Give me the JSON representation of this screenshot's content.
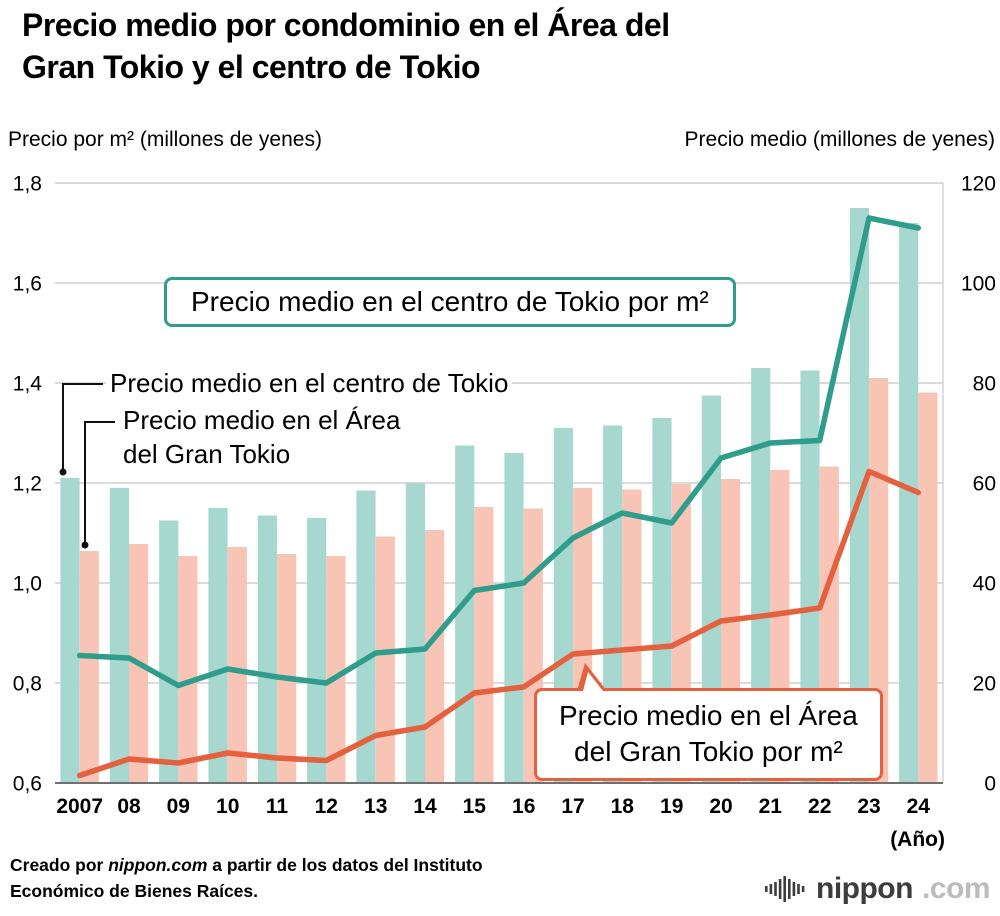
{
  "title": {
    "line1": "Precio medio por condominio en el Área del",
    "line2": "Gran Tokio y el centro de Tokio"
  },
  "axis_headers": {
    "left": "Precio por m² (millones de yenes)",
    "right": "Precio medio (millones de yenes)"
  },
  "callouts": {
    "centro_line_label": "Precio medio en el centro de Tokio por m²",
    "gran_tokio_line_label_lines": [
      "Precio medio en el Área",
      "del Gran Tokio por m²"
    ],
    "centro_bar_label": "Precio medio en el centro de Tokio",
    "gran_tokio_bar_label_lines": [
      "Precio medio en el Área",
      "del Gran Tokio"
    ]
  },
  "x_axis_note": "(Año)",
  "footer": {
    "prefix": "Creado por ",
    "source": "nippon.com",
    "suffix": " a partir de los datos del Instituto Económico de Bienes Raíces."
  },
  "logo": {
    "name": "nippon",
    "tld": ".com",
    "mark": "soundwave-bars-icon"
  },
  "colors": {
    "teal_bar": "#a6d8cf",
    "salmon_bar": "#f7c4b6",
    "teal_line": "#2f9c8c",
    "salmon_line": "#e3613f",
    "gridline": "#cfcfcf",
    "baseline": "#6f6f6f",
    "connector": "#111111"
  },
  "chart_data": {
    "type": "bar",
    "subtype": "grouped-bars-with-lines-combo",
    "categories": [
      "2007",
      "08",
      "09",
      "10",
      "11",
      "12",
      "13",
      "14",
      "15",
      "16",
      "17",
      "18",
      "19",
      "20",
      "21",
      "22",
      "23",
      "24"
    ],
    "bar_series": [
      {
        "name": "Precio medio en el centro de Tokio",
        "axis": "right",
        "color_key": "teal_bar",
        "values": [
          61,
          59,
          52.5,
          55,
          53.5,
          53,
          58.5,
          60,
          67.5,
          66,
          71,
          71.5,
          73,
          77.5,
          83,
          82.5,
          115,
          112
        ]
      },
      {
        "name": "Precio medio en el Área del Gran Tokio",
        "axis": "right",
        "color_key": "salmon_bar",
        "values": [
          46.4,
          47.8,
          45.4,
          47.2,
          45.8,
          45.4,
          49.3,
          50.6,
          55.2,
          54.9,
          59.0,
          58.7,
          59.8,
          60.8,
          62.6,
          63.3,
          81.0,
          78.1
        ]
      }
    ],
    "line_series": [
      {
        "name": "Precio medio en el centro de Tokio por m²",
        "axis": "left",
        "color_key": "teal_line",
        "values": [
          0.855,
          0.85,
          0.795,
          0.828,
          0.812,
          0.8,
          0.86,
          0.868,
          0.985,
          1.0,
          1.09,
          1.14,
          1.12,
          1.25,
          1.28,
          1.285,
          1.73,
          1.71
        ]
      },
      {
        "name": "Precio medio en el Área del Gran Tokio por m²",
        "axis": "left",
        "color_key": "salmon_line",
        "values": [
          0.615,
          0.648,
          0.64,
          0.66,
          0.65,
          0.645,
          0.695,
          0.712,
          0.78,
          0.792,
          0.858,
          0.866,
          0.874,
          0.924,
          0.936,
          0.95,
          1.223,
          1.181
        ]
      }
    ],
    "left_axis": {
      "min": 0.6,
      "max": 1.8,
      "ticks": [
        "1,8",
        "1,6",
        "1,4",
        "1,2",
        "1,0",
        "0,8",
        "0,6"
      ]
    },
    "right_axis": {
      "min": 0,
      "max": 120,
      "ticks": [
        "120",
        "100",
        "80",
        "60",
        "40",
        "20",
        "0"
      ]
    },
    "xlabel": "(Año)",
    "grid": true,
    "legend_position": "inside-callout-boxes"
  }
}
